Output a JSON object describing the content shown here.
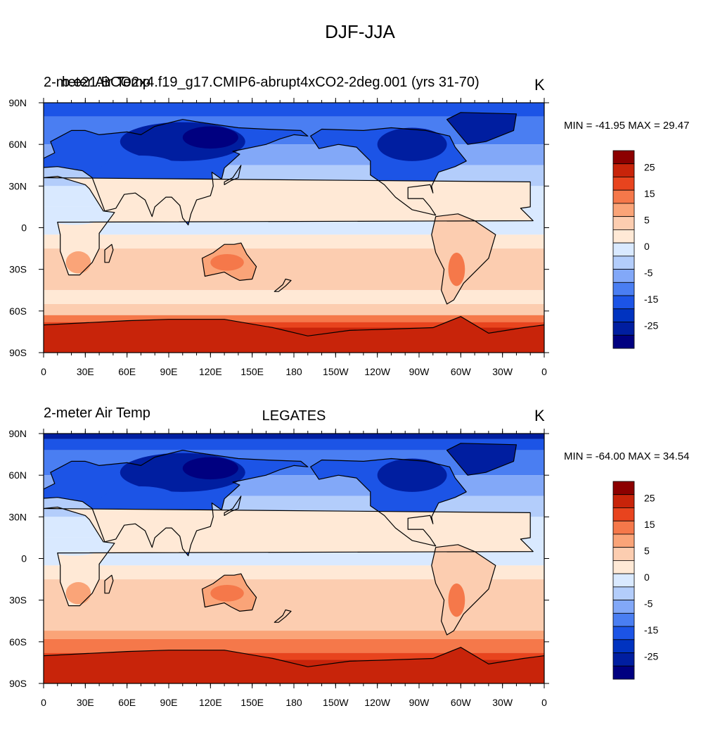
{
  "title": "DJF-JJA",
  "colors": {
    "levels": [
      "#000080",
      "#001ea0",
      "#0033c0",
      "#1c54e6",
      "#4a7ef2",
      "#82a8f8",
      "#b3cdfb",
      "#d9e9ff",
      "#ffe9d6",
      "#fccdb0",
      "#faa478",
      "#f5784a",
      "#e8441e",
      "#c8240a",
      "#8c0000"
    ],
    "coast": "#000000"
  },
  "colorbar": {
    "labels": [
      "25",
      "15",
      "5",
      "0",
      "-5",
      "-15",
      "-25"
    ]
  },
  "axes": {
    "lon_labels": [
      "0",
      "30E",
      "60E",
      "90E",
      "120E",
      "150E",
      "180",
      "150W",
      "120W",
      "90W",
      "60W",
      "30W",
      "0"
    ],
    "lat_labels": [
      "90N",
      "60N",
      "30N",
      "0",
      "30S",
      "60S",
      "90S"
    ]
  },
  "panels": [
    {
      "left_string": "2-meter Air Temp",
      "left_string_overlap": "b.e21.BCO2x4.f19_g17.CMIP6-abrupt4xCO2-2deg.001 (yrs 31-70)",
      "center_string": "",
      "units": "K",
      "minmax": "MIN = -41.95 MAX =  29.47"
    },
    {
      "left_string": "2-meter Air Temp",
      "left_string_overlap": "",
      "center_string": "LEGATES",
      "units": "K",
      "minmax": "MIN = -64.00 MAX =  34.54"
    }
  ]
}
